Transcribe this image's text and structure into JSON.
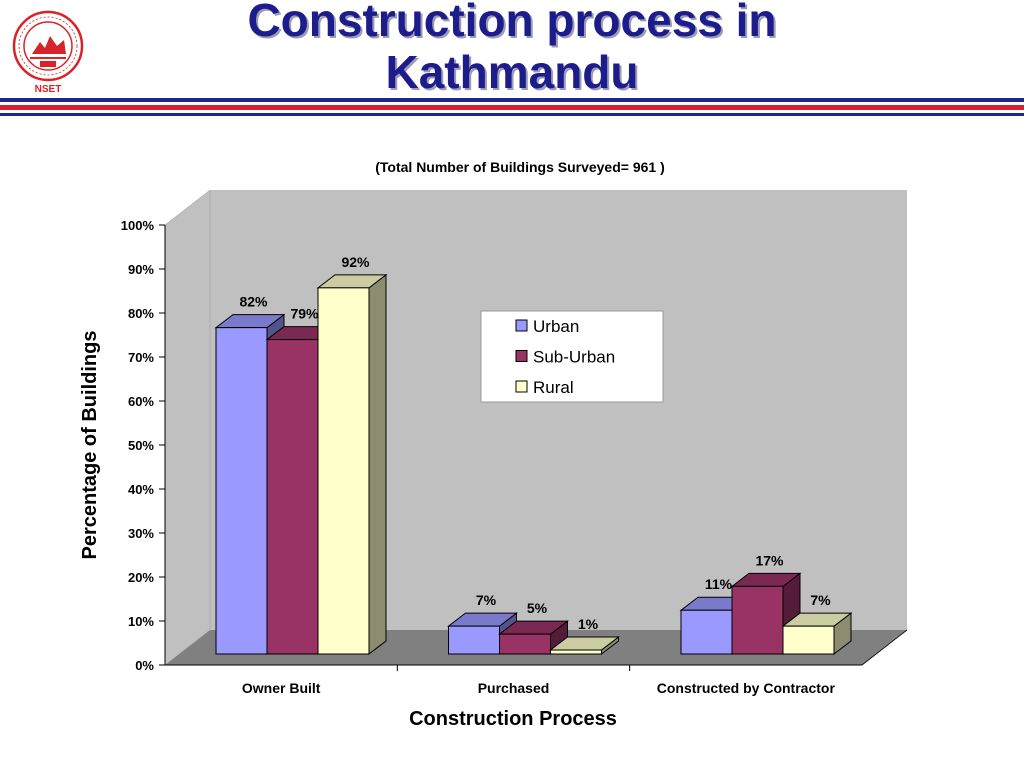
{
  "logo": {
    "text": "NSET",
    "ring_text": "NATIONAL SOCIETY FOR EARTHQUAKE TECHNOLOGY-NEPAL",
    "year": "1994",
    "color": "#d8232a"
  },
  "title": "Construction process in Kathmandu",
  "colors": {
    "title": "#1c1c8c",
    "rule_red": "#d8232a",
    "rule_blue": "#1c2a8c"
  },
  "chart_data": {
    "type": "bar",
    "style": "3d-clustered",
    "title": "(Total Number of Buildings Surveyed= 961 )",
    "xlabel": "Construction Process",
    "ylabel": "Percentage of Buildings",
    "categories": [
      "Owner Built",
      "Purchased",
      "Constructed by Contractor"
    ],
    "series": [
      {
        "name": "Urban",
        "values": [
          82,
          7,
          11
        ],
        "labels": [
          "82%",
          "7%",
          "11%"
        ],
        "color": "#9999ff"
      },
      {
        "name": "Sub-Urban",
        "values": [
          79,
          5,
          17
        ],
        "labels": [
          "79%",
          "5%",
          "17%"
        ],
        "color": "#993366"
      },
      {
        "name": "Rural",
        "values": [
          92,
          1,
          7
        ],
        "labels": [
          "92%",
          "1%",
          "7%"
        ],
        "color": "#ffffcc"
      }
    ],
    "ylim": [
      0,
      100
    ],
    "yticks": [
      "0%",
      "10%",
      "20%",
      "30%",
      "40%",
      "50%",
      "60%",
      "70%",
      "80%",
      "90%",
      "100%"
    ],
    "grid": false,
    "wall_color": "#c0c0c0",
    "floor_color": "#808080",
    "legend_position": "center-right"
  }
}
